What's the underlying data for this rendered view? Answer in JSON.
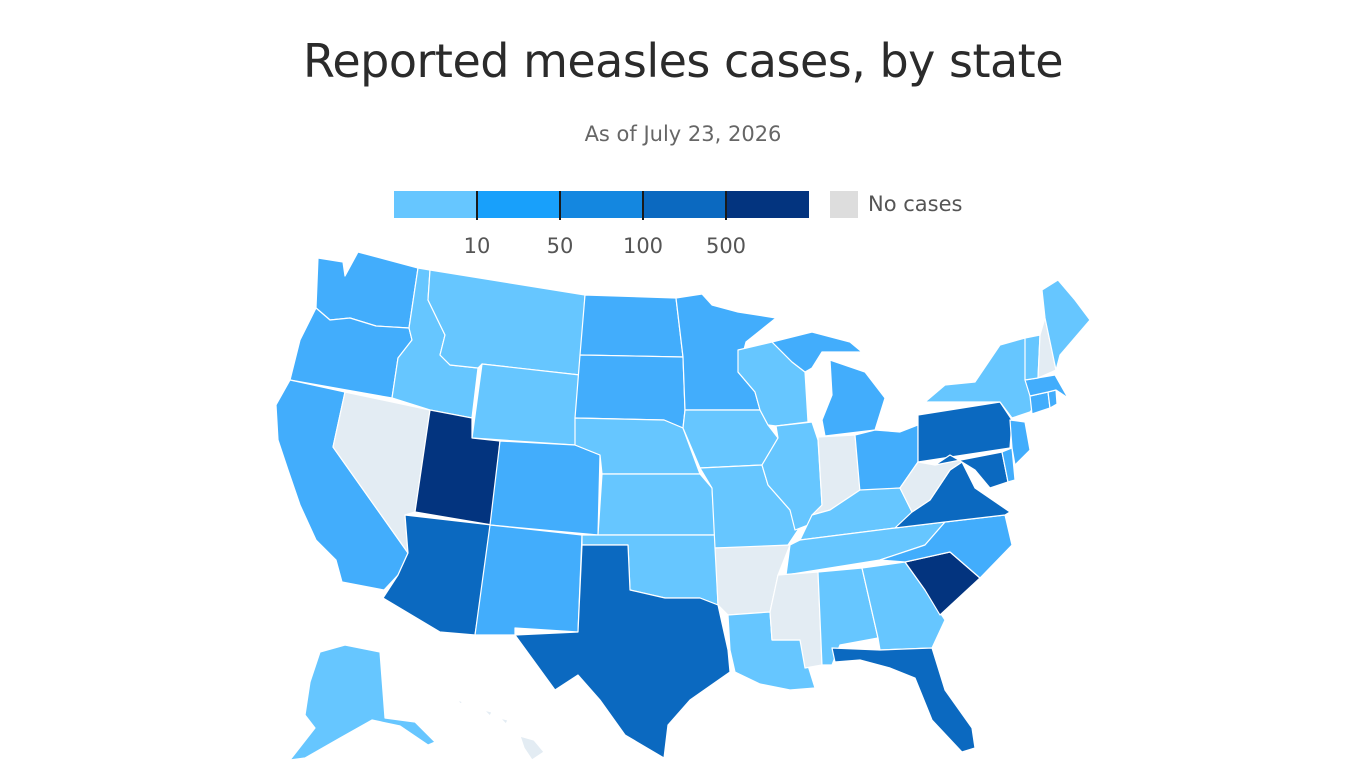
{
  "title": "Reported measles cases, by state",
  "subtitle": "As of July 23, 2026",
  "legend": {
    "bins": [
      {
        "color": "#66c6ff"
      },
      {
        "color": "#18a0fb"
      },
      {
        "color": "#1487e0"
      },
      {
        "color": "#0b69c0"
      },
      {
        "color": "#03347f"
      }
    ],
    "ticks": [
      "10",
      "50",
      "100",
      "500"
    ],
    "no_cases_label": "No cases",
    "no_cases_color": "#dddddd"
  },
  "state_categories": {
    "WA": "#42adfc",
    "OR": "#42adfc",
    "CA": "#42adfc",
    "NV": "#e3ecf3",
    "ID": "#66c6ff",
    "MT": "#66c6ff",
    "WY": "#66c6ff",
    "UT": "#03347f",
    "AZ": "#0b69c0",
    "CO": "#42adfc",
    "NM": "#42adfc",
    "ND": "#42adfc",
    "SD": "#42adfc",
    "NE": "#66c6ff",
    "KS": "#66c6ff",
    "OK": "#66c6ff",
    "TX": "#0b69c0",
    "MN": "#42adfc",
    "IA": "#66c6ff",
    "MO": "#66c6ff",
    "AR": "#e3ecf3",
    "LA": "#66c6ff",
    "WI": "#66c6ff",
    "IL": "#66c6ff",
    "MS": "#e3ecf3",
    "MI": "#42adfc",
    "IN": "#e3ecf3",
    "KY": "#66c6ff",
    "TN": "#66c6ff",
    "AL": "#66c6ff",
    "OH": "#42adfc",
    "WV": "#e3ecf3",
    "VA": "#0b69c0",
    "NC": "#42adfc",
    "SC": "#03347f",
    "GA": "#66c6ff",
    "FL": "#0b69c0",
    "PA": "#0b69c0",
    "NY": "#66c6ff",
    "VT": "#66c6ff",
    "NH": "#e3ecf3",
    "ME": "#66c6ff",
    "MA": "#42adfc",
    "CT": "#42adfc",
    "RI": "#42adfc",
    "NJ": "#42adfc",
    "DE": "#42adfc",
    "MD": "#0b69c0",
    "AK": "#66c6ff",
    "HI": "#e3ecf3"
  }
}
